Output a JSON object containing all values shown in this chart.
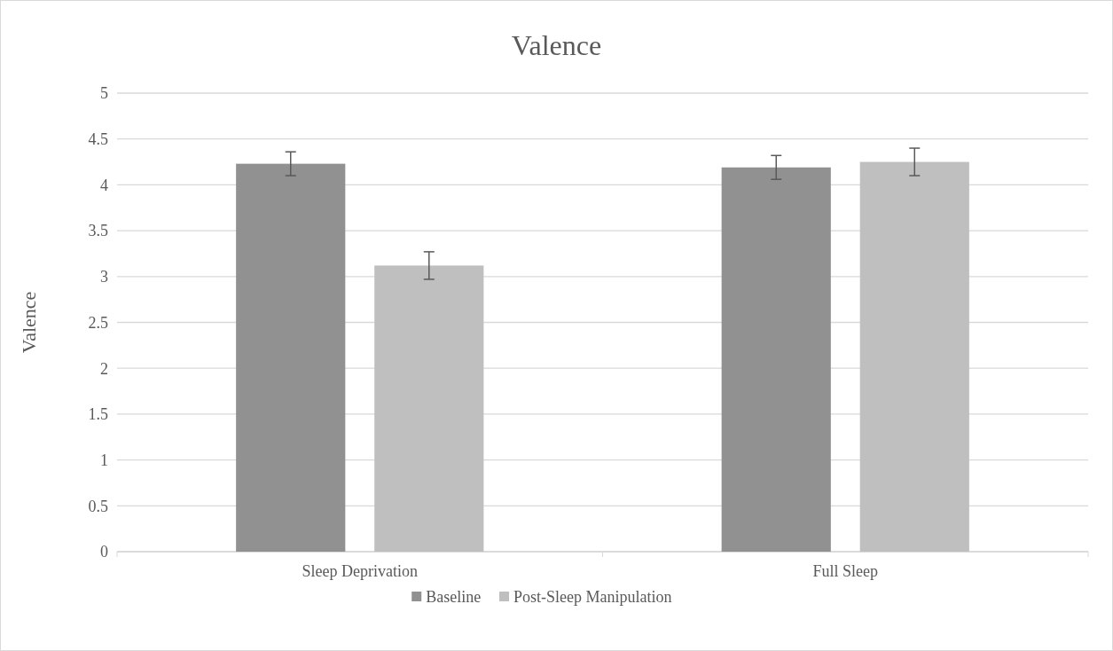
{
  "chart_data": {
    "type": "bar",
    "title": "Valence",
    "ylabel": "Valence",
    "categories": [
      "Sleep Deprivation",
      "Full Sleep"
    ],
    "series": [
      {
        "name": "Baseline",
        "color": "#919191",
        "values": [
          4.23,
          4.19
        ],
        "errors": [
          0.13,
          0.13
        ]
      },
      {
        "name": "Post-Sleep Manipulation",
        "color": "#bfbfbf",
        "values": [
          3.12,
          4.25
        ],
        "errors": [
          0.15,
          0.15
        ]
      }
    ],
    "ylim": [
      0,
      5
    ],
    "yticks": [
      0,
      0.5,
      1,
      1.5,
      2,
      2.5,
      3,
      3.5,
      4,
      4.5,
      5
    ],
    "grid": "y",
    "legend": "bottom"
  }
}
